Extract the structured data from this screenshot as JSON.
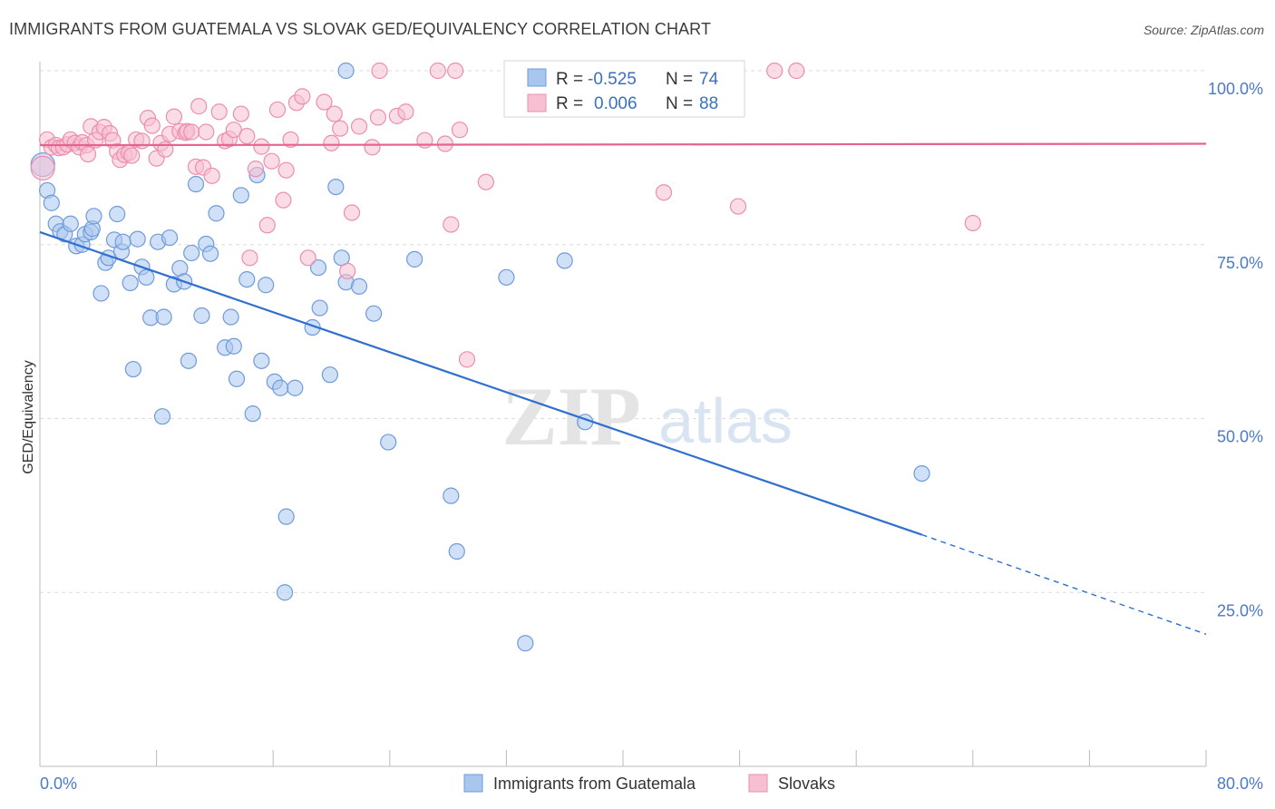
{
  "title": "IMMIGRANTS FROM GUATEMALA VS SLOVAK GED/EQUIVALENCY CORRELATION CHART",
  "source": "Source: ZipAtlas.com",
  "watermark": {
    "zip": "ZIP",
    "atlas": "atlas"
  },
  "colors": {
    "blue_fill": "#a9c6ee",
    "blue_stroke": "#6f9bd9",
    "blue_line": "#2f6fd0",
    "pink_fill": "#f6c0d2",
    "pink_stroke": "#ec8eb0",
    "pink_line": "#e8628f",
    "grid": "#dcdcdc",
    "axis_label": "#4a7ac8"
  },
  "legend": {
    "rows": [
      {
        "r_label": "R =",
        "r_value": "-0.525",
        "n_label": "N =",
        "n_value": "74"
      },
      {
        "r_label": "R =",
        "r_value": "0.006",
        "n_label": "N =",
        "n_value": "88"
      }
    ]
  },
  "chart_data": {
    "type": "scatter",
    "title": "IMMIGRANTS FROM GUATEMALA VS SLOVAK GED/EQUIVALENCY CORRELATION CHART",
    "xlabel": "",
    "ylabel": "GED/Equivalency",
    "xlim": [
      0,
      80
    ],
    "ylim": [
      0,
      100
    ],
    "x_tick_labels": [
      "0.0%",
      "80.0%"
    ],
    "y_ticks": [
      25,
      50,
      75,
      100
    ],
    "y_tick_labels": [
      "25.0%",
      "50.0%",
      "75.0%",
      "100.0%"
    ],
    "grid": true,
    "legend_position": "top-center",
    "series": [
      {
        "name": "Immigrants from Guatemala",
        "color": "#a9c6ee",
        "r": -0.525,
        "n": 74,
        "trend": {
          "x0": 0,
          "y0": 76.8,
          "x1": 60.5,
          "y1": 33.3,
          "dash_to_x": 80,
          "dash_to_y": 19.0
        },
        "points": [
          [
            0.2,
            86.5
          ],
          [
            0.5,
            82.8
          ],
          [
            0.8,
            81.0
          ],
          [
            1.1,
            78.0
          ],
          [
            1.4,
            76.9
          ],
          [
            1.7,
            76.5
          ],
          [
            2.1,
            78.0
          ],
          [
            2.5,
            74.8
          ],
          [
            2.9,
            75.0
          ],
          [
            3.1,
            76.5
          ],
          [
            3.5,
            76.8
          ],
          [
            3.6,
            77.3
          ],
          [
            3.7,
            79.1
          ],
          [
            4.2,
            68.0
          ],
          [
            4.5,
            72.4
          ],
          [
            4.7,
            73.1
          ],
          [
            5.1,
            75.7
          ],
          [
            5.3,
            79.4
          ],
          [
            5.6,
            74.0
          ],
          [
            5.7,
            75.4
          ],
          [
            6.2,
            69.5
          ],
          [
            6.4,
            57.1
          ],
          [
            6.7,
            75.8
          ],
          [
            7.0,
            71.8
          ],
          [
            7.3,
            70.3
          ],
          [
            7.6,
            64.5
          ],
          [
            8.1,
            75.4
          ],
          [
            8.4,
            50.3
          ],
          [
            8.5,
            64.6
          ],
          [
            8.9,
            76.0
          ],
          [
            9.2,
            69.3
          ],
          [
            9.6,
            71.6
          ],
          [
            9.9,
            69.7
          ],
          [
            10.2,
            58.3
          ],
          [
            10.4,
            73.8
          ],
          [
            10.7,
            83.7
          ],
          [
            11.1,
            64.8
          ],
          [
            11.4,
            75.1
          ],
          [
            11.7,
            73.7
          ],
          [
            12.1,
            79.5
          ],
          [
            12.7,
            60.2
          ],
          [
            13.1,
            64.6
          ],
          [
            13.3,
            60.4
          ],
          [
            13.5,
            55.7
          ],
          [
            13.8,
            82.1
          ],
          [
            14.2,
            70.0
          ],
          [
            14.6,
            50.7
          ],
          [
            14.9,
            85.0
          ],
          [
            15.2,
            58.3
          ],
          [
            15.5,
            69.2
          ],
          [
            16.1,
            55.3
          ],
          [
            16.5,
            54.4
          ],
          [
            16.8,
            25.0
          ],
          [
            16.9,
            35.9
          ],
          [
            17.5,
            54.4
          ],
          [
            18.7,
            63.1
          ],
          [
            19.2,
            65.9
          ],
          [
            19.1,
            71.7
          ],
          [
            19.9,
            56.3
          ],
          [
            20.3,
            83.3
          ],
          [
            20.7,
            73.1
          ],
          [
            21.0,
            69.6
          ],
          [
            21.0,
            100.0
          ],
          [
            21.9,
            69.0
          ],
          [
            22.9,
            65.1
          ],
          [
            23.9,
            46.6
          ],
          [
            25.7,
            72.9
          ],
          [
            28.2,
            38.9
          ],
          [
            28.6,
            30.9
          ],
          [
            32.0,
            70.3
          ],
          [
            33.3,
            17.7
          ],
          [
            36.0,
            72.7
          ],
          [
            37.4,
            49.5
          ],
          [
            60.5,
            42.1
          ]
        ]
      },
      {
        "name": "Slovaks",
        "color": "#f6c0d2",
        "r": 0.006,
        "n": 88,
        "trend": {
          "x0": 0,
          "y0": 89.3,
          "x1": 80,
          "y1": 89.5
        },
        "points": [
          [
            0.2,
            86.0
          ],
          [
            0.5,
            90.1
          ],
          [
            0.8,
            89.0
          ],
          [
            1.1,
            89.3
          ],
          [
            1.3,
            88.9
          ],
          [
            1.6,
            89.0
          ],
          [
            1.9,
            89.4
          ],
          [
            2.1,
            90.1
          ],
          [
            2.4,
            89.6
          ],
          [
            2.7,
            89.0
          ],
          [
            2.9,
            89.7
          ],
          [
            3.2,
            89.3
          ],
          [
            3.3,
            88.0
          ],
          [
            3.5,
            92.0
          ],
          [
            3.8,
            90.0
          ],
          [
            4.1,
            91.2
          ],
          [
            4.4,
            91.9
          ],
          [
            4.8,
            91.0
          ],
          [
            5.0,
            90.0
          ],
          [
            5.3,
            88.4
          ],
          [
            5.5,
            87.2
          ],
          [
            5.8,
            87.9
          ],
          [
            6.1,
            88.2
          ],
          [
            6.3,
            87.8
          ],
          [
            6.6,
            90.1
          ],
          [
            7.0,
            89.9
          ],
          [
            7.4,
            93.2
          ],
          [
            7.7,
            92.1
          ],
          [
            8.0,
            87.4
          ],
          [
            8.3,
            89.6
          ],
          [
            8.6,
            88.7
          ],
          [
            8.9,
            90.9
          ],
          [
            9.2,
            93.4
          ],
          [
            9.6,
            91.3
          ],
          [
            10.0,
            91.1
          ],
          [
            10.1,
            91.3
          ],
          [
            10.4,
            91.2
          ],
          [
            10.7,
            86.2
          ],
          [
            10.9,
            94.9
          ],
          [
            11.2,
            86.1
          ],
          [
            11.4,
            91.2
          ],
          [
            11.8,
            84.9
          ],
          [
            12.3,
            94.1
          ],
          [
            12.7,
            89.9
          ],
          [
            13.0,
            90.2
          ],
          [
            13.3,
            91.5
          ],
          [
            13.8,
            93.8
          ],
          [
            14.2,
            90.6
          ],
          [
            14.4,
            73.1
          ],
          [
            14.8,
            85.9
          ],
          [
            15.2,
            89.1
          ],
          [
            15.6,
            77.8
          ],
          [
            15.9,
            87.0
          ],
          [
            16.3,
            94.4
          ],
          [
            16.7,
            81.4
          ],
          [
            16.9,
            85.7
          ],
          [
            17.2,
            90.1
          ],
          [
            17.6,
            95.4
          ],
          [
            18.0,
            96.3
          ],
          [
            18.4,
            73.1
          ],
          [
            19.5,
            95.5
          ],
          [
            20.0,
            89.6
          ],
          [
            20.2,
            93.8
          ],
          [
            20.6,
            91.7
          ],
          [
            21.1,
            71.2
          ],
          [
            21.4,
            79.6
          ],
          [
            21.9,
            92.0
          ],
          [
            22.8,
            89.0
          ],
          [
            23.2,
            93.3
          ],
          [
            23.3,
            100.0
          ],
          [
            24.5,
            93.5
          ],
          [
            25.1,
            94.1
          ],
          [
            26.4,
            90.0
          ],
          [
            27.3,
            100.0
          ],
          [
            27.8,
            89.5
          ],
          [
            28.2,
            77.9
          ],
          [
            28.5,
            100.0
          ],
          [
            28.8,
            91.5
          ],
          [
            29.3,
            58.5
          ],
          [
            30.6,
            84.0
          ],
          [
            35.2,
            100.0
          ],
          [
            37.9,
            100.0
          ],
          [
            40.6,
            100.0
          ],
          [
            42.8,
            82.5
          ],
          [
            47.9,
            80.5
          ],
          [
            50.4,
            100.0
          ],
          [
            51.9,
            100.0
          ],
          [
            64.0,
            78.1
          ]
        ]
      }
    ]
  }
}
